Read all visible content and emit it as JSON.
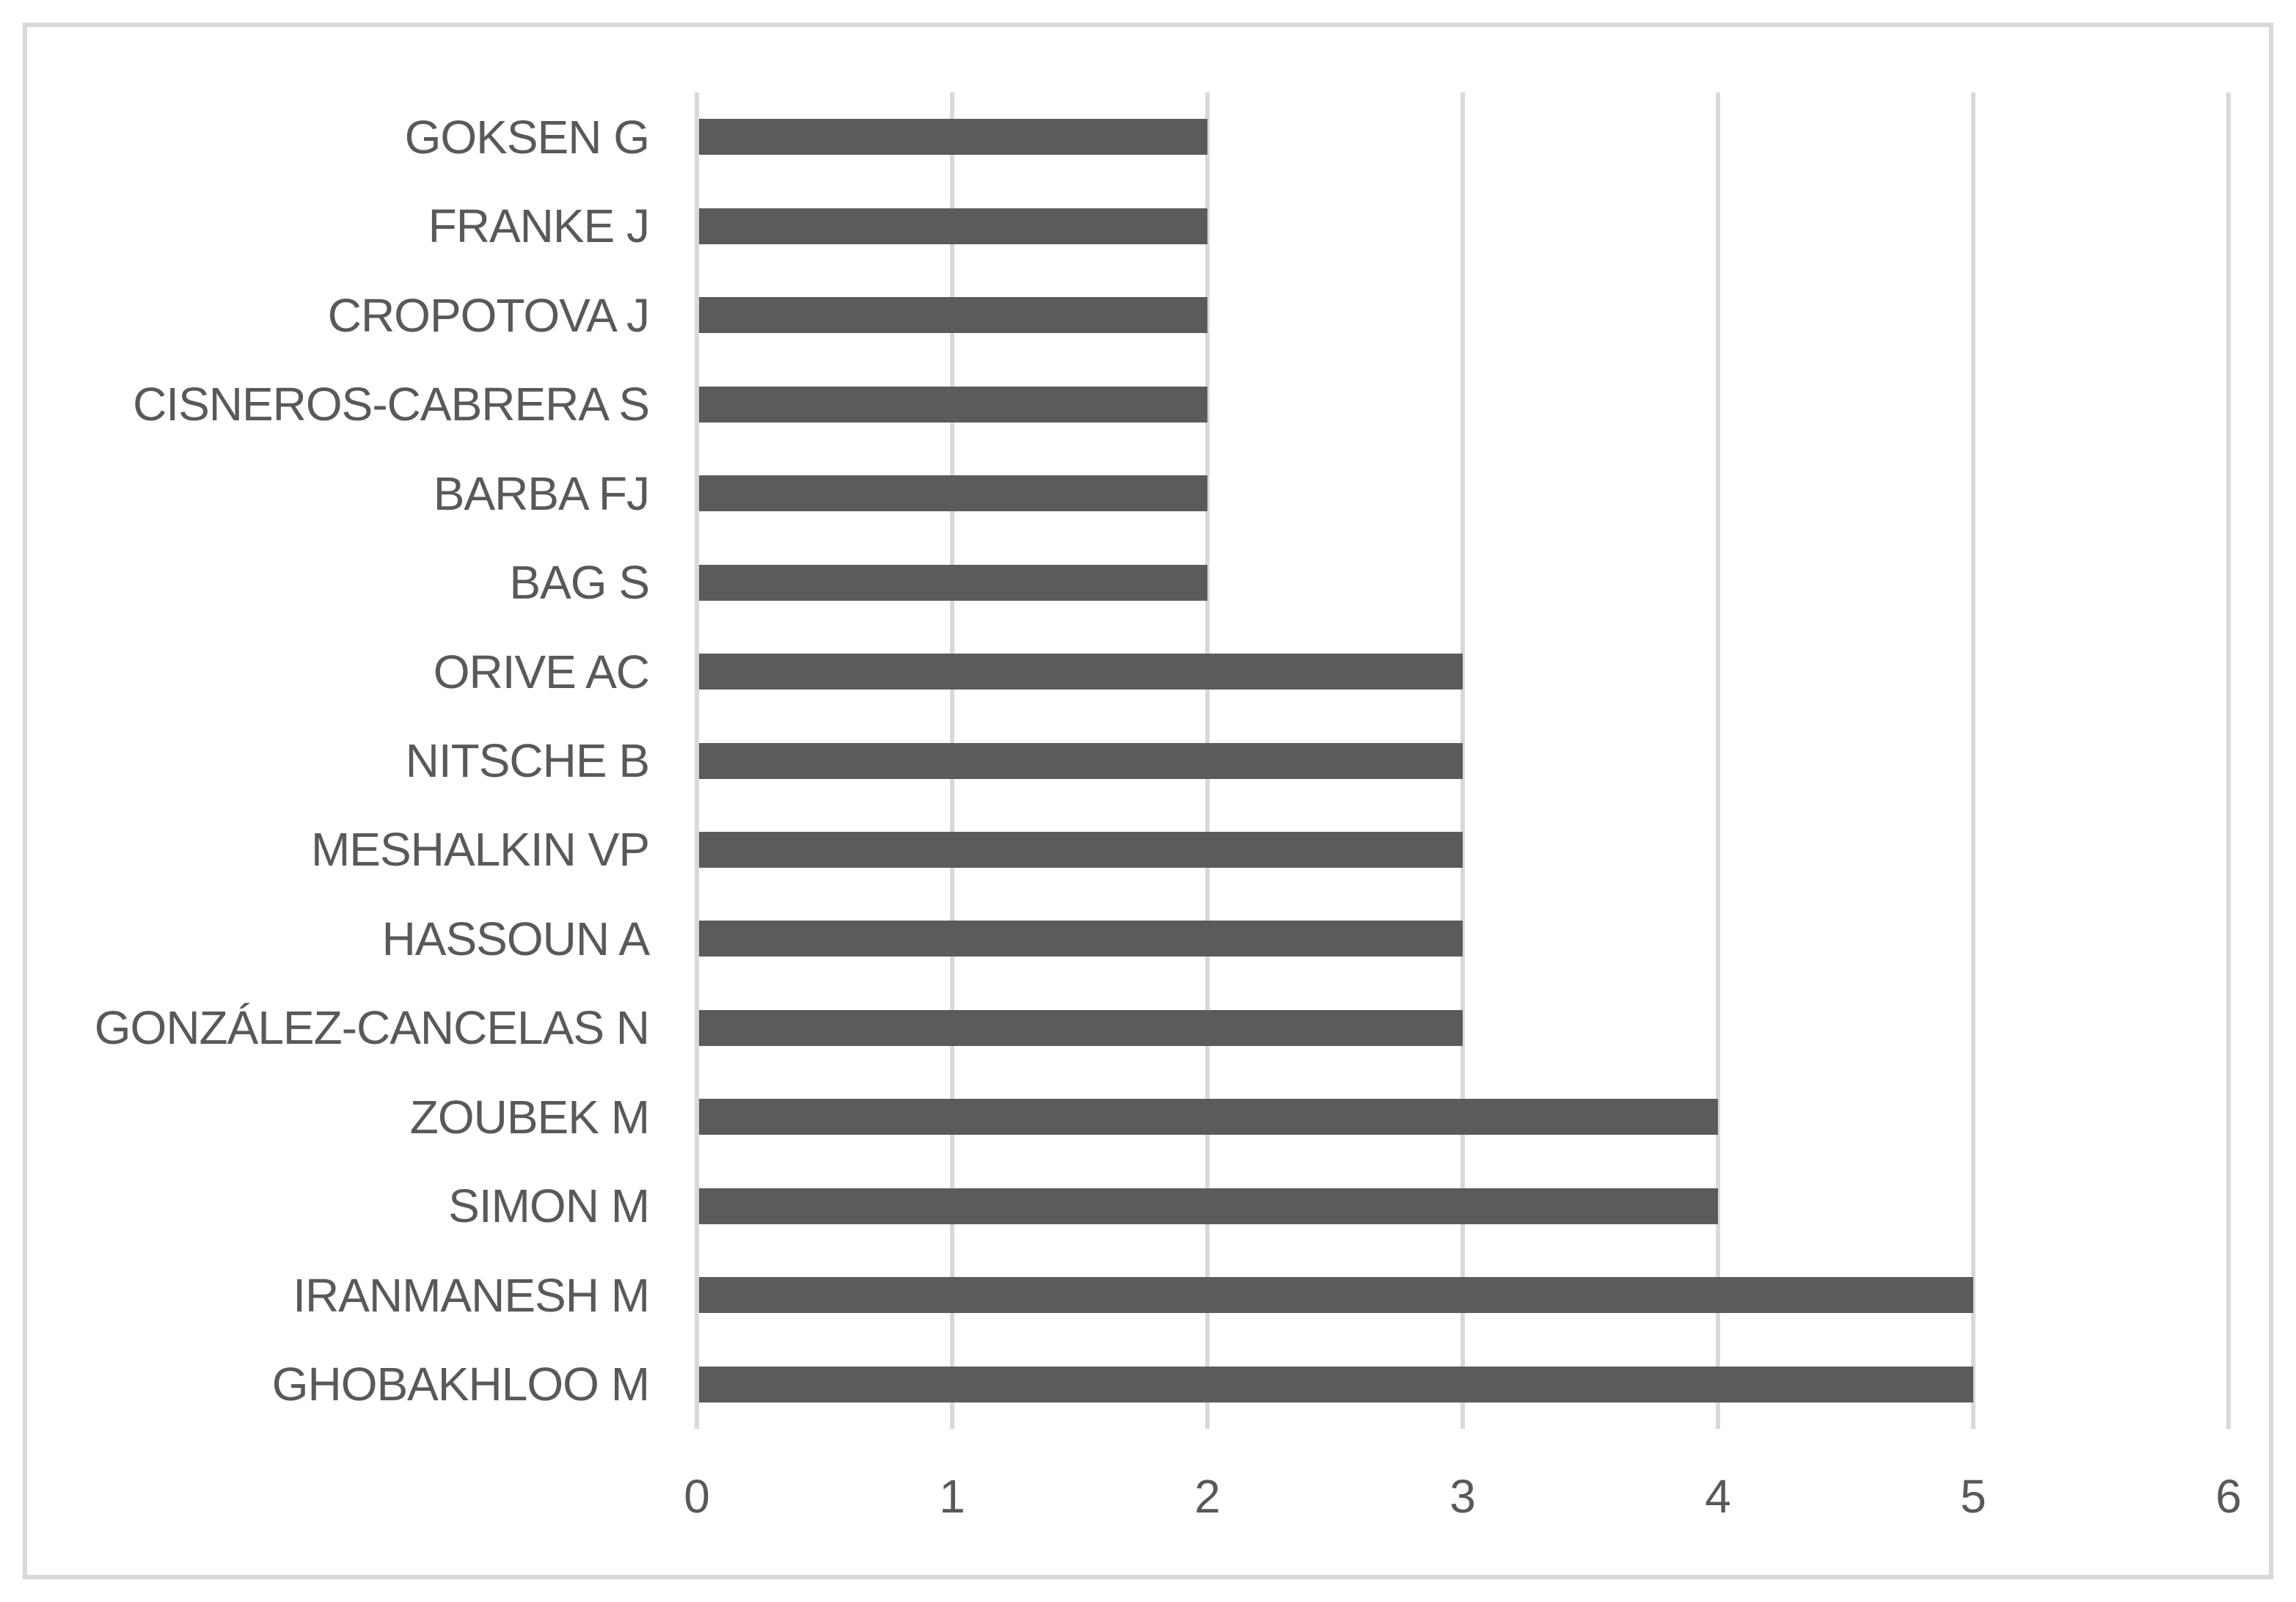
{
  "chart_data": {
    "type": "bar",
    "orientation": "horizontal",
    "title": "",
    "xlabel": "",
    "ylabel": "",
    "categories": [
      "GOKSEN G",
      "FRANKE J",
      "CROPOTOVA J",
      "CISNEROS-CABRERA S",
      "BARBA FJ",
      "BAG S",
      "ORIVE AC",
      "NITSCHE B",
      "MESHALKIN VP",
      "HASSOUN A",
      "GONZÁLEZ-CANCELAS N",
      "ZOUBEK M",
      "SIMON M",
      "IRANMANESH M",
      "GHOBAKHLOO M"
    ],
    "values": [
      2,
      2,
      2,
      2,
      2,
      2,
      3,
      3,
      3,
      3,
      3,
      4,
      4,
      5,
      5
    ],
    "xlim": [
      0,
      6
    ],
    "x_ticks": [
      "0",
      "1",
      "2",
      "3",
      "4",
      "5",
      "6"
    ],
    "grid": "vertical-gridlines",
    "legend": "none"
  },
  "colors": {
    "bar": "#5B5B5B",
    "gridline": "#D9D9D9",
    "axis_line": "#D9D9D9",
    "frame_border": "#D9D9D9",
    "text": "#595959",
    "background": "#FFFFFF"
  }
}
